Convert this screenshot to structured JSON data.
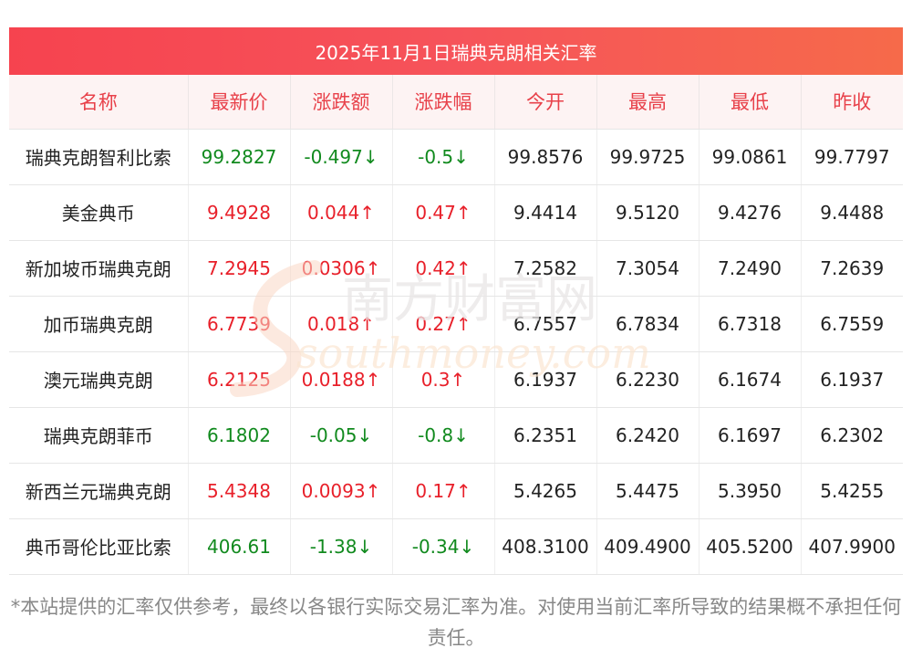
{
  "title": "2025年11月1日瑞典克朗相关汇率",
  "headers": [
    "名称",
    "最新价",
    "涨跌额",
    "涨跌幅",
    "今开",
    "最高",
    "最低",
    "昨收"
  ],
  "rows": [
    {
      "name": "瑞典克朗智利比索",
      "latest": "99.2827",
      "change": "-0.497↓",
      "pct": "-0.5↓",
      "open": "99.8576",
      "high": "99.9725",
      "low": "99.0861",
      "prev": "99.7797",
      "dir": "down"
    },
    {
      "name": "美金典币",
      "latest": "9.4928",
      "change": "0.044↑",
      "pct": "0.47↑",
      "open": "9.4414",
      "high": "9.5120",
      "low": "9.4276",
      "prev": "9.4488",
      "dir": "up"
    },
    {
      "name": "新加坡币瑞典克朗",
      "latest": "7.2945",
      "change": "0.0306↑",
      "pct": "0.42↑",
      "open": "7.2582",
      "high": "7.3054",
      "low": "7.2490",
      "prev": "7.2639",
      "dir": "up"
    },
    {
      "name": "加币瑞典克朗",
      "latest": "6.7739",
      "change": "0.018↑",
      "pct": "0.27↑",
      "open": "6.7557",
      "high": "6.7834",
      "low": "6.7318",
      "prev": "6.7559",
      "dir": "up"
    },
    {
      "name": "澳元瑞典克朗",
      "latest": "6.2125",
      "change": "0.0188↑",
      "pct": "0.3↑",
      "open": "6.1937",
      "high": "6.2230",
      "low": "6.1674",
      "prev": "6.1937",
      "dir": "up"
    },
    {
      "name": "瑞典克朗菲币",
      "latest": "6.1802",
      "change": "-0.05↓",
      "pct": "-0.8↓",
      "open": "6.2351",
      "high": "6.2420",
      "low": "6.1697",
      "prev": "6.2302",
      "dir": "down"
    },
    {
      "name": "新西兰元瑞典克朗",
      "latest": "5.4348",
      "change": "0.0093↑",
      "pct": "0.17↑",
      "open": "5.4265",
      "high": "5.4475",
      "low": "5.3950",
      "prev": "5.4255",
      "dir": "up"
    },
    {
      "name": "典币哥伦比亚比索",
      "latest": "406.61",
      "change": "-1.38↓",
      "pct": "-0.34↓",
      "open": "408.3100",
      "high": "409.4900",
      "low": "405.5200",
      "prev": "407.9900",
      "dir": "down"
    }
  ],
  "watermark": {
    "cn": "南方财富网",
    "en": "southmoney.com"
  },
  "footnote": "*本站提供的汇率仅供参考，最终以各银行实际交易汇率为准。对使用当前汇率所导致的结果概不承担任何责任。",
  "colors": {
    "up": "#e8202a",
    "down": "#118a1e",
    "header_text": "#e8414a",
    "title_bg": "#f6434f"
  }
}
